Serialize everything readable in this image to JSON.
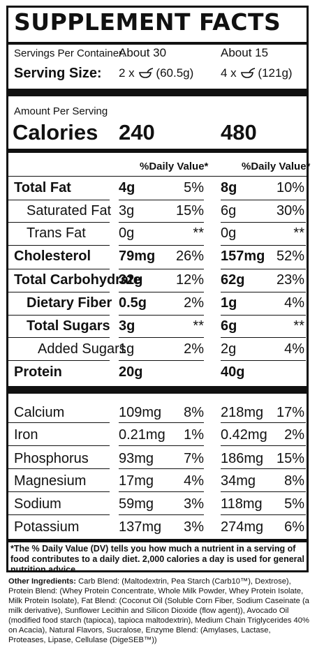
{
  "title": "SUPPLEMENT FACTS",
  "servings": {
    "per_container_label": "Servings Per Container:",
    "per_container_1": "About 30",
    "per_container_2": "About 15",
    "size_label": "Serving Size:",
    "size_1_prefix": "2 x",
    "size_1_amount": "(60.5g)",
    "size_2_prefix": "4 x",
    "size_2_amount": "(121g)",
    "scoop_icon": "scoop-icon"
  },
  "amount_per_serving": "Amount Per Serving",
  "calories": {
    "label": "Calories",
    "value_1": "240",
    "value_2": "480"
  },
  "dv_header": "%Daily Value*",
  "nutrients": [
    {
      "name": "Total Fat",
      "amt1": "4g",
      "dv1": "5%",
      "amt2": "8g",
      "dv2": "10%"
    },
    {
      "name": "Saturated Fat",
      "amt1": "3g",
      "dv1": "15%",
      "amt2": "6g",
      "dv2": "30%"
    },
    {
      "name": "Trans Fat",
      "amt1": "0g",
      "dv1": "**",
      "amt2": "0g",
      "dv2": "**"
    },
    {
      "name": "Cholesterol",
      "amt1": "79mg",
      "dv1": "26%",
      "amt2": "157mg",
      "dv2": "52%"
    },
    {
      "name": "Total Carbohydrate",
      "amt1": "32g",
      "dv1": "12%",
      "amt2": "62g",
      "dv2": "23%"
    },
    {
      "name": "Dietary Fiber",
      "amt1": "0.5g",
      "dv1": "2%",
      "amt2": "1g",
      "dv2": "4%"
    },
    {
      "name": "Total Sugars",
      "amt1": "3g",
      "dv1": "**",
      "amt2": "6g",
      "dv2": "**"
    },
    {
      "name": "Added Sugars",
      "amt1": "1g",
      "dv1": "2%",
      "amt2": "2g",
      "dv2": "4%"
    },
    {
      "name": "Protein",
      "amt1": "20g",
      "dv1": "",
      "amt2": "40g",
      "dv2": ""
    }
  ],
  "minerals": [
    {
      "name": "Calcium",
      "amt1": "109mg",
      "dv1": "8%",
      "amt2": "218mg",
      "dv2": "17%"
    },
    {
      "name": "Iron",
      "amt1": "0.21mg",
      "dv1": "1%",
      "amt2": "0.42mg",
      "dv2": "2%"
    },
    {
      "name": "Phosphorus",
      "amt1": "93mg",
      "dv1": "7%",
      "amt2": "186mg",
      "dv2": "15%"
    },
    {
      "name": "Magnesium",
      "amt1": "17mg",
      "dv1": "4%",
      "amt2": "34mg",
      "dv2": "8%"
    },
    {
      "name": "Sodium",
      "amt1": "59mg",
      "dv1": "3%",
      "amt2": "118mg",
      "dv2": "5%"
    },
    {
      "name": "Potassium",
      "amt1": "137mg",
      "dv1": "3%",
      "amt2": "274mg",
      "dv2": "6%"
    }
  ],
  "footnote": "*The % Daily Value (DV) tells you how much a nutrient in a serving of food contributes to a daily diet. 2,000 calories a day is used for general nutrition advice.",
  "ingredients": {
    "label": "Other Ingredients:",
    "text": " Carb Blend: (Maltodextrin, Pea Starch (Carb10™), Dextrose), Protein Blend: (Whey Protein Concentrate, Whole Milk Powder, Whey Protein Isolate, Milk Protein Isolate), Fat Blend: (Coconut Oil (Soluble Corn Fiber, Sodium Caseinate (a milk derivative), Sunflower Lecithin and Silicon Dioxide (flow agent)), Avocado Oil (modified food starch (tapioca), tapioca maltodextrin), Medium Chain Triglycerides 40% on Acacia), Natural Flavors, Sucralose, Enzyme Blend: (Amylases, Lactase, Proteases, Lipase, Cellulase (DigeSEB™))"
  }
}
